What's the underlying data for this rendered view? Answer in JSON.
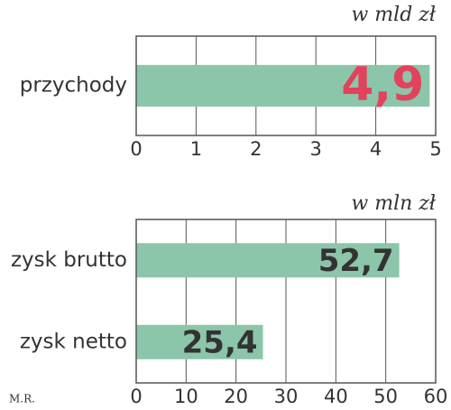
{
  "chart_data": [
    {
      "type": "barh",
      "unit_label": "w mld zł",
      "categories": [
        "przychody"
      ],
      "values": [
        4.9
      ],
      "value_labels": [
        "4,9"
      ],
      "color": "#8cc6aa",
      "label_color": "#e2425c",
      "xlim": [
        0,
        5
      ],
      "xticks": [
        0,
        1,
        2,
        3,
        4,
        5
      ],
      "grid": true
    },
    {
      "type": "barh",
      "unit_label": "w mln zł",
      "categories": [
        "zysk brutto",
        "zysk netto"
      ],
      "values": [
        52.7,
        25.4
      ],
      "value_labels": [
        "52,7",
        "25,4"
      ],
      "color": "#8cc6aa",
      "label_color": "#333333",
      "xlim": [
        0,
        60
      ],
      "xticks": [
        0,
        10,
        20,
        30,
        40,
        50,
        60
      ],
      "grid": true
    }
  ],
  "credit": "M.R."
}
